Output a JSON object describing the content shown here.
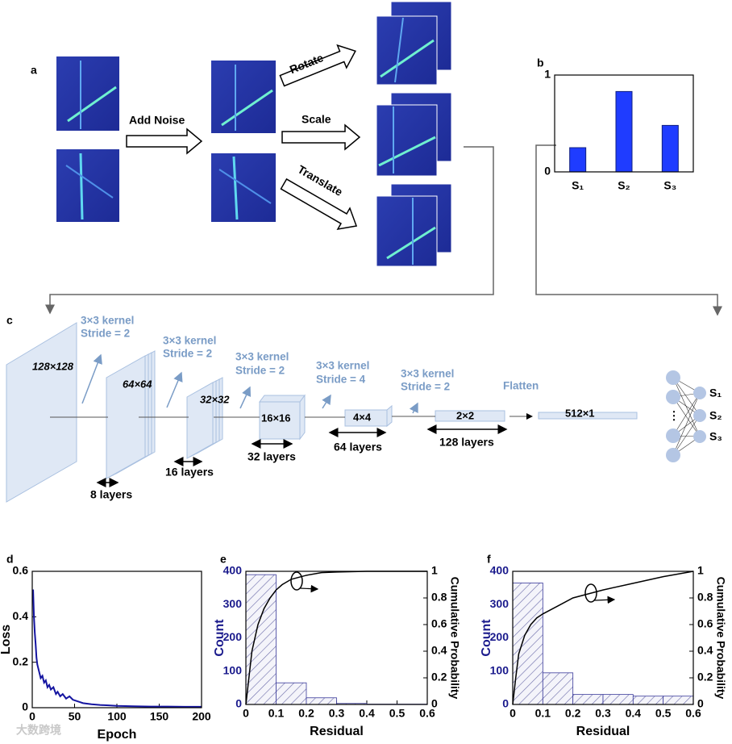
{
  "figure": {
    "a": {
      "label": "a",
      "transforms": [
        "Add Noise",
        "Rotate",
        "Scale",
        "Translate"
      ]
    },
    "c": {
      "label": "c",
      "sizes": [
        "128×128",
        "64×64",
        "32×32",
        "16×16",
        "4×4",
        "2×2",
        "512×1"
      ],
      "kernels": [
        {
          "kernel": "3×3 kernel",
          "stride": "Stride = 2"
        },
        {
          "kernel": "3×3 kernel",
          "stride": "Stride = 2"
        },
        {
          "kernel": "3×3 kernel",
          "stride": "Stride = 2"
        },
        {
          "kernel": "3×3 kernel",
          "stride": "Stride = 4"
        },
        {
          "kernel": "3×3 kernel",
          "stride": "Stride = 2"
        }
      ],
      "flatten": "Flatten",
      "layers": [
        "8 layers",
        "16 layers",
        "32 layers",
        "64 layers",
        "128 layers"
      ],
      "outputs": [
        "S₁",
        "S₂",
        "S₃"
      ],
      "dots": "⋮"
    },
    "watermark": "大数跨境"
  },
  "chart_data": [
    {
      "panel": "b",
      "type": "bar",
      "categories": [
        "S₁",
        "S₂",
        "S₃"
      ],
      "values": [
        0.25,
        0.83,
        0.48
      ],
      "color": "#1f3cff",
      "ylim": [
        0,
        1
      ],
      "yticks": [
        0,
        1
      ]
    },
    {
      "panel": "d",
      "type": "line",
      "xlabel": "Epoch",
      "ylabel": "Loss",
      "x": [
        1,
        2,
        3,
        4,
        5,
        6,
        8,
        10,
        12,
        14,
        16,
        18,
        20,
        22,
        25,
        28,
        30,
        33,
        36,
        40,
        44,
        48,
        52,
        56,
        60,
        70,
        80,
        90,
        100,
        120,
        140,
        160,
        180,
        200
      ],
      "values": [
        0.52,
        0.4,
        0.33,
        0.28,
        0.22,
        0.19,
        0.16,
        0.13,
        0.14,
        0.11,
        0.12,
        0.09,
        0.1,
        0.08,
        0.09,
        0.06,
        0.07,
        0.05,
        0.06,
        0.04,
        0.05,
        0.035,
        0.03,
        0.025,
        0.02,
        0.015,
        0.012,
        0.01,
        0.008,
        0.006,
        0.005,
        0.005,
        0.004,
        0.004
      ],
      "color": "#1414a0",
      "xlim": [
        0,
        200
      ],
      "xticks": [
        0,
        50,
        100,
        150,
        200
      ],
      "ylim": [
        0,
        0.6
      ],
      "yticks": [
        0,
        0.2,
        0.4,
        0.6
      ]
    },
    {
      "panel": "e",
      "type": "histogram",
      "xlabel": "Residual",
      "ylabel": "Count",
      "y2label": "Cumulative Probability",
      "bins": [
        0,
        0.1,
        0.2,
        0.3,
        0.4,
        0.5,
        0.6
      ],
      "counts": [
        390,
        65,
        20,
        3,
        1,
        1
      ],
      "color": "#3a3a9a",
      "ylabel_color": "#1a1a8c",
      "xlim": [
        0,
        0.6
      ],
      "xticks": [
        0,
        0.1,
        0.2,
        0.3,
        0.4,
        0.5,
        0.6
      ],
      "ylim": [
        0,
        400
      ],
      "yticks": [
        0,
        100,
        200,
        300,
        400
      ],
      "y2lim": [
        0,
        1
      ],
      "y2ticks": [
        0,
        0.2,
        0.4,
        0.6,
        0.8,
        1
      ],
      "series": [
        {
          "x": [
            0,
            0.01,
            0.02,
            0.04,
            0.06,
            0.08,
            0.1,
            0.12,
            0.15,
            0.2,
            0.25,
            0.3,
            0.4,
            0.5,
            0.6
          ],
          "values": [
            0,
            0.2,
            0.4,
            0.6,
            0.72,
            0.8,
            0.86,
            0.9,
            0.94,
            0.97,
            0.99,
            0.995,
            1,
            1,
            1
          ],
          "axis": "y2",
          "color": "#000000"
        }
      ]
    },
    {
      "panel": "f",
      "type": "histogram",
      "xlabel": "Residual",
      "ylabel": "Count",
      "y2label": "Cumulative Probability",
      "bins": [
        0,
        0.1,
        0.2,
        0.3,
        0.4,
        0.5,
        0.6
      ],
      "counts": [
        365,
        95,
        30,
        30,
        25,
        25
      ],
      "color": "#3a3a9a",
      "ylabel_color": "#1a1a8c",
      "xlim": [
        0,
        0.6
      ],
      "xticks": [
        0,
        0.1,
        0.2,
        0.3,
        0.4,
        0.5,
        0.6
      ],
      "ylim": [
        0,
        400
      ],
      "yticks": [
        0,
        100,
        200,
        300,
        400
      ],
      "y2lim": [
        0,
        1
      ],
      "y2ticks": [
        0,
        0.2,
        0.4,
        0.6,
        0.8,
        1
      ],
      "series": [
        {
          "x": [
            0,
            0.01,
            0.02,
            0.04,
            0.06,
            0.08,
            0.1,
            0.15,
            0.2,
            0.3,
            0.4,
            0.5,
            0.6
          ],
          "values": [
            0,
            0.2,
            0.38,
            0.52,
            0.6,
            0.65,
            0.68,
            0.74,
            0.8,
            0.86,
            0.91,
            0.96,
            1
          ],
          "axis": "y2",
          "color": "#000000"
        }
      ]
    }
  ]
}
